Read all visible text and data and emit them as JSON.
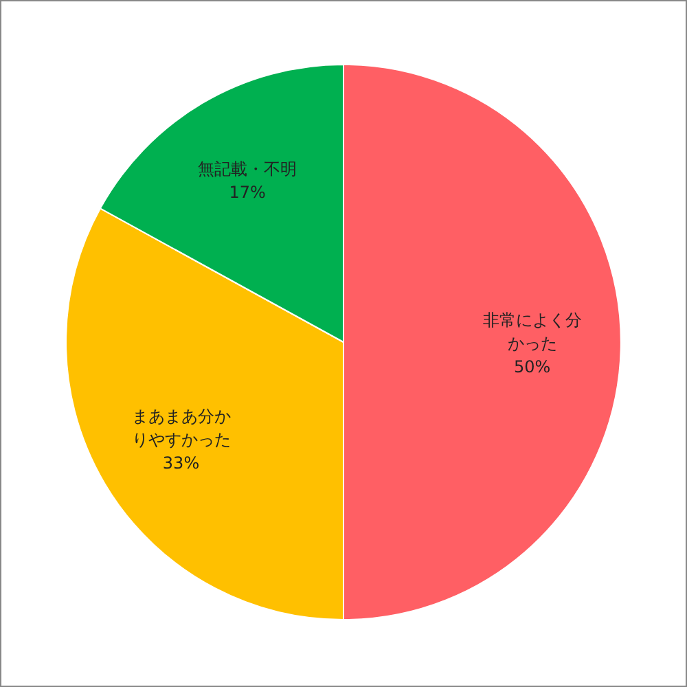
{
  "chart_data": {
    "type": "pie",
    "categories": [
      "非常によく分かった",
      "まあまあ分かりやすかった",
      "無記載・不明"
    ],
    "values": [
      50,
      33,
      17
    ],
    "colors": [
      "#ff5f64",
      "#ffc000",
      "#00b050"
    ],
    "value_labels": [
      "50%",
      "33%",
      "17%"
    ]
  }
}
